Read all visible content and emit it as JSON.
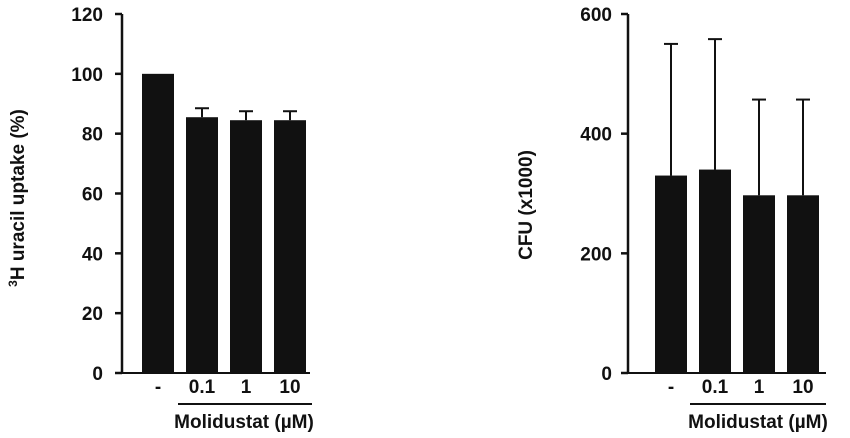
{
  "chart_data": [
    {
      "type": "bar",
      "title": "",
      "xlabel": "Molidustat (µM)",
      "ylabel_sup": "3",
      "ylabel_main": "H uracil uptake (%)",
      "ylabel": "3H uracil uptake (%)",
      "categories": [
        "-",
        "0.1",
        "1",
        "10"
      ],
      "values": [
        100,
        85.5,
        84.5,
        84.5
      ],
      "error_upper": [
        0,
        3,
        3,
        3
      ],
      "yticks": [
        0,
        20,
        40,
        60,
        80,
        100,
        120
      ],
      "ylim": [
        0,
        120
      ],
      "grid": false,
      "bar_color": "#111111"
    },
    {
      "type": "bar",
      "title": "",
      "xlabel": "Molidustat (µM)",
      "ylabel": "CFU (x1000)",
      "categories": [
        "-",
        "0.1",
        "1",
        "10"
      ],
      "values": [
        330,
        340,
        297,
        297
      ],
      "error_upper": [
        220,
        218,
        160,
        160
      ],
      "yticks": [
        0,
        200,
        400,
        600
      ],
      "ylim": [
        0,
        600
      ],
      "grid": false,
      "bar_color": "#111111"
    }
  ]
}
